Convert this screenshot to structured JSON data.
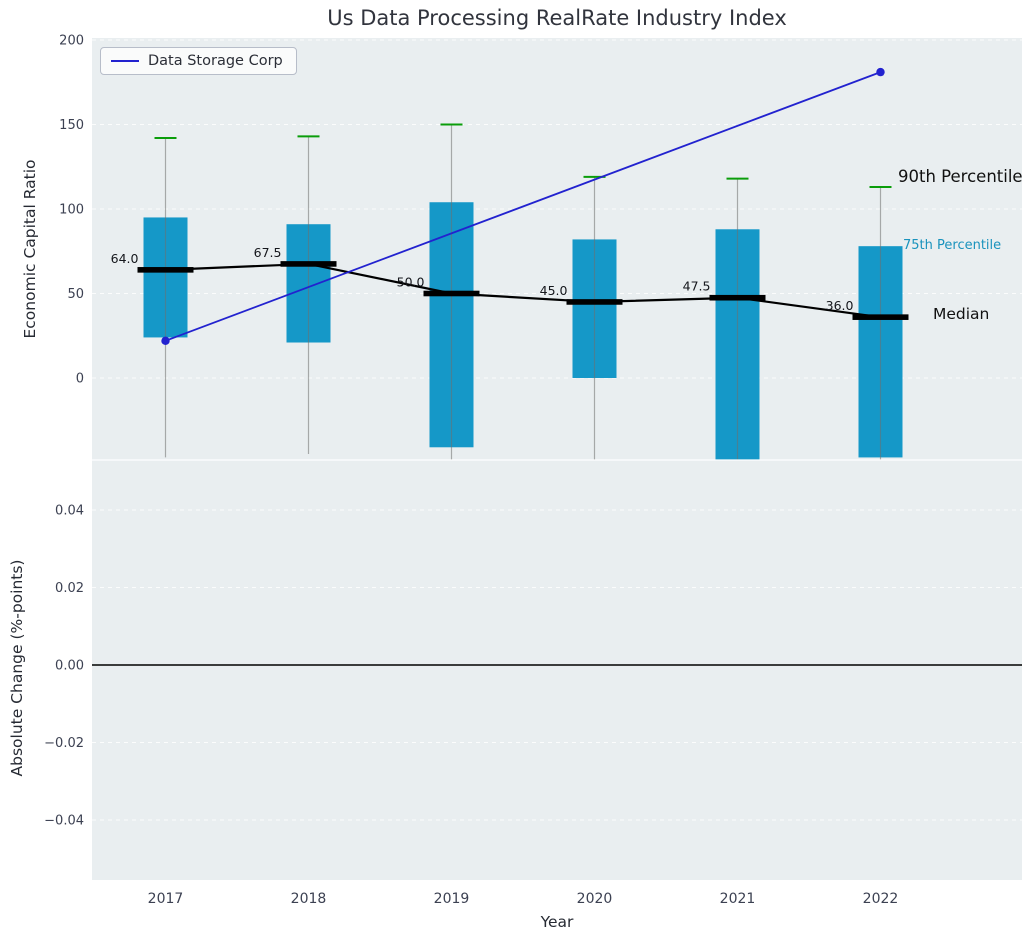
{
  "annotations": {
    "p90": {
      "label": "90th Percentile",
      "value": 119
    },
    "p75": {
      "label": "75th Percentile",
      "value": 77
    },
    "median": {
      "label": "Median",
      "value": 37
    }
  },
  "colors": {
    "panel_bg": "#e9eef0",
    "grid": "#ffffff",
    "bar": "#1598c8",
    "whisker": "#6f6f6f",
    "cap": "#0a9d0a",
    "median": "#000000",
    "company_line": "#2222cf",
    "zero_line": "#000000",
    "tick_text": "#3c4152",
    "annotation_75": "#1a93bd"
  },
  "chart_data": {
    "type": "boxplot-with-line",
    "title": "Us Data Processing RealRate Industry Index",
    "xlabel": "Year",
    "grid": true,
    "legend_position": "upper left",
    "categories": [
      "2017",
      "2018",
      "2019",
      "2020",
      "2021",
      "2022"
    ],
    "top_panel": {
      "ylabel": "Economic Capital Ratio",
      "ylim": [
        -48,
        201
      ],
      "yticks": [
        {
          "label": "200",
          "value": 200
        },
        {
          "label": "150",
          "value": 150
        },
        {
          "label": "100",
          "value": 100
        },
        {
          "label": "50",
          "value": 50
        },
        {
          "label": "0",
          "value": 0
        }
      ],
      "p90": [
        142,
        143,
        150,
        119,
        118,
        113
      ],
      "p75": [
        95,
        91,
        104,
        82,
        88,
        78
      ],
      "median": [
        64.0,
        67.5,
        50.0,
        45.0,
        47.5,
        36.0
      ],
      "median_labels": [
        "64.0",
        "67.5",
        "50.0",
        "45.0",
        "47.5",
        "36.0"
      ],
      "p25": [
        24,
        21,
        -41,
        0,
        -52,
        -47
      ],
      "p10": [
        -47,
        -45,
        -70,
        -55,
        -70,
        -60
      ],
      "company_line": {
        "name": "Data Storage Corp",
        "points": [
          {
            "x": "2017",
            "value": 22
          },
          {
            "x": "2022",
            "value": 181
          }
        ]
      }
    },
    "bottom_panel": {
      "ylabel": "Absolute Change (%-points)",
      "yticks": [
        {
          "label": "0.04",
          "value": 0.04
        },
        {
          "label": "0.02",
          "value": 0.02
        },
        {
          "label": "0.00",
          "value": 0
        },
        {
          "label": "−0.02",
          "value": -0.02
        },
        {
          "label": "−0.04",
          "value": -0.04
        }
      ],
      "zero_line": 0,
      "values": []
    }
  }
}
